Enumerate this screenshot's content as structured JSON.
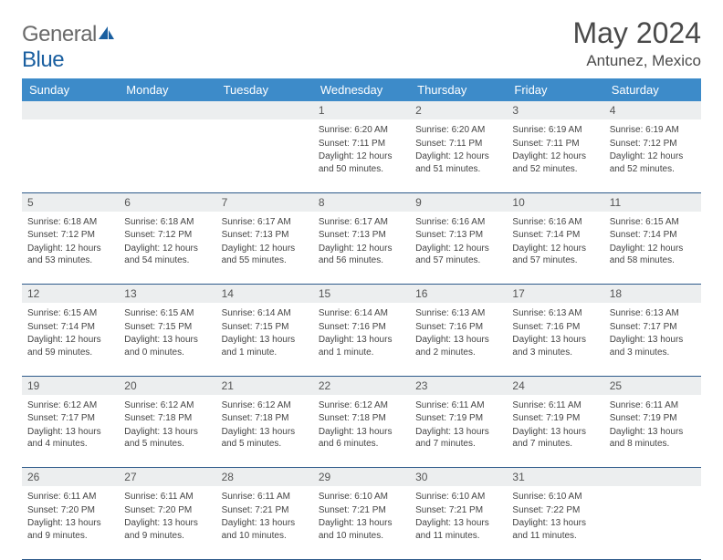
{
  "brand": {
    "name_part1": "General",
    "name_part2": "Blue"
  },
  "title": "May 2024",
  "location": "Antunez, Mexico",
  "colors": {
    "header_bg": "#3d8bc9",
    "header_text": "#ffffff",
    "daynum_bg": "#eceeef",
    "cell_border": "#2e5a8a",
    "body_text": "#444444",
    "title_text": "#4a4a4a",
    "logo_gray": "#6a6a6a",
    "logo_blue": "#1a5fa0"
  },
  "dow": [
    "Sunday",
    "Monday",
    "Tuesday",
    "Wednesday",
    "Thursday",
    "Friday",
    "Saturday"
  ],
  "weeks": [
    [
      null,
      null,
      null,
      {
        "n": "1",
        "sr": "6:20 AM",
        "ss": "7:11 PM",
        "dl": "12 hours and 50 minutes."
      },
      {
        "n": "2",
        "sr": "6:20 AM",
        "ss": "7:11 PM",
        "dl": "12 hours and 51 minutes."
      },
      {
        "n": "3",
        "sr": "6:19 AM",
        "ss": "7:11 PM",
        "dl": "12 hours and 52 minutes."
      },
      {
        "n": "4",
        "sr": "6:19 AM",
        "ss": "7:12 PM",
        "dl": "12 hours and 52 minutes."
      }
    ],
    [
      {
        "n": "5",
        "sr": "6:18 AM",
        "ss": "7:12 PM",
        "dl": "12 hours and 53 minutes."
      },
      {
        "n": "6",
        "sr": "6:18 AM",
        "ss": "7:12 PM",
        "dl": "12 hours and 54 minutes."
      },
      {
        "n": "7",
        "sr": "6:17 AM",
        "ss": "7:13 PM",
        "dl": "12 hours and 55 minutes."
      },
      {
        "n": "8",
        "sr": "6:17 AM",
        "ss": "7:13 PM",
        "dl": "12 hours and 56 minutes."
      },
      {
        "n": "9",
        "sr": "6:16 AM",
        "ss": "7:13 PM",
        "dl": "12 hours and 57 minutes."
      },
      {
        "n": "10",
        "sr": "6:16 AM",
        "ss": "7:14 PM",
        "dl": "12 hours and 57 minutes."
      },
      {
        "n": "11",
        "sr": "6:15 AM",
        "ss": "7:14 PM",
        "dl": "12 hours and 58 minutes."
      }
    ],
    [
      {
        "n": "12",
        "sr": "6:15 AM",
        "ss": "7:14 PM",
        "dl": "12 hours and 59 minutes."
      },
      {
        "n": "13",
        "sr": "6:15 AM",
        "ss": "7:15 PM",
        "dl": "13 hours and 0 minutes."
      },
      {
        "n": "14",
        "sr": "6:14 AM",
        "ss": "7:15 PM",
        "dl": "13 hours and 1 minute."
      },
      {
        "n": "15",
        "sr": "6:14 AM",
        "ss": "7:16 PM",
        "dl": "13 hours and 1 minute."
      },
      {
        "n": "16",
        "sr": "6:13 AM",
        "ss": "7:16 PM",
        "dl": "13 hours and 2 minutes."
      },
      {
        "n": "17",
        "sr": "6:13 AM",
        "ss": "7:16 PM",
        "dl": "13 hours and 3 minutes."
      },
      {
        "n": "18",
        "sr": "6:13 AM",
        "ss": "7:17 PM",
        "dl": "13 hours and 3 minutes."
      }
    ],
    [
      {
        "n": "19",
        "sr": "6:12 AM",
        "ss": "7:17 PM",
        "dl": "13 hours and 4 minutes."
      },
      {
        "n": "20",
        "sr": "6:12 AM",
        "ss": "7:18 PM",
        "dl": "13 hours and 5 minutes."
      },
      {
        "n": "21",
        "sr": "6:12 AM",
        "ss": "7:18 PM",
        "dl": "13 hours and 5 minutes."
      },
      {
        "n": "22",
        "sr": "6:12 AM",
        "ss": "7:18 PM",
        "dl": "13 hours and 6 minutes."
      },
      {
        "n": "23",
        "sr": "6:11 AM",
        "ss": "7:19 PM",
        "dl": "13 hours and 7 minutes."
      },
      {
        "n": "24",
        "sr": "6:11 AM",
        "ss": "7:19 PM",
        "dl": "13 hours and 7 minutes."
      },
      {
        "n": "25",
        "sr": "6:11 AM",
        "ss": "7:19 PM",
        "dl": "13 hours and 8 minutes."
      }
    ],
    [
      {
        "n": "26",
        "sr": "6:11 AM",
        "ss": "7:20 PM",
        "dl": "13 hours and 9 minutes."
      },
      {
        "n": "27",
        "sr": "6:11 AM",
        "ss": "7:20 PM",
        "dl": "13 hours and 9 minutes."
      },
      {
        "n": "28",
        "sr": "6:11 AM",
        "ss": "7:21 PM",
        "dl": "13 hours and 10 minutes."
      },
      {
        "n": "29",
        "sr": "6:10 AM",
        "ss": "7:21 PM",
        "dl": "13 hours and 10 minutes."
      },
      {
        "n": "30",
        "sr": "6:10 AM",
        "ss": "7:21 PM",
        "dl": "13 hours and 11 minutes."
      },
      {
        "n": "31",
        "sr": "6:10 AM",
        "ss": "7:22 PM",
        "dl": "13 hours and 11 minutes."
      },
      null
    ]
  ],
  "labels": {
    "sunrise": "Sunrise:",
    "sunset": "Sunset:",
    "daylight": "Daylight:"
  }
}
